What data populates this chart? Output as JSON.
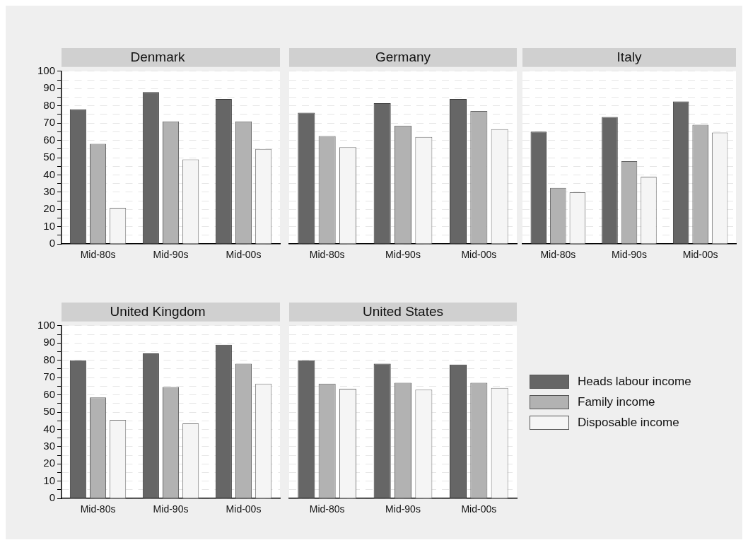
{
  "chart_data": [
    {
      "type": "bar",
      "title": "Denmark",
      "categories": [
        "Mid-80s",
        "Mid-90s",
        "Mid-00s"
      ],
      "ylim": [
        0,
        100
      ],
      "yticks": [
        0,
        {
          "value": 5,
          "label": null
        },
        10,
        {
          "value": 15,
          "label": null
        },
        20,
        {
          "value": 25,
          "label": null
        },
        30,
        {
          "value": 35,
          "label": null
        },
        40,
        {
          "value": 45,
          "label": null
        },
        50,
        {
          "value": 55,
          "label": null
        },
        60,
        {
          "value": 65,
          "label": null
        },
        70,
        {
          "value": 75,
          "label": null
        },
        80,
        {
          "value": 85,
          "label": null
        },
        90,
        {
          "value": 95,
          "label": null
        },
        100
      ],
      "grid": "y",
      "legend": false,
      "series": [
        {
          "color": "#666666",
          "values": [
            78,
            88,
            84
          ]
        },
        {
          "color": "#b2b2b2",
          "values": [
            58,
            71,
            71
          ]
        },
        {
          "color": "#f5f5f5",
          "values": [
            21,
            49,
            55
          ]
        }
      ]
    },
    {
      "type": "bar",
      "title": "Germany",
      "categories": [
        "Mid-80s",
        "Mid-90s",
        "Mid-00s"
      ],
      "ylim": [
        0,
        100
      ],
      "yticks": [
        0,
        {
          "value": 5,
          "label": null
        },
        10,
        {
          "value": 15,
          "label": null
        },
        20,
        {
          "value": 25,
          "label": null
        },
        30,
        {
          "value": 35,
          "label": null
        },
        40,
        {
          "value": 45,
          "label": null
        },
        50,
        {
          "value": 55,
          "label": null
        },
        60,
        {
          "value": 65,
          "label": null
        },
        70,
        {
          "value": 75,
          "label": null
        },
        80,
        {
          "value": 85,
          "label": null
        },
        90,
        {
          "value": 95,
          "label": null
        },
        100
      ],
      "grid": "y",
      "legend": false,
      "tick_labels": "x",
      "series": [
        {
          "color": "#666666",
          "values": [
            76,
            81.5,
            84
          ]
        },
        {
          "color": "#b2b2b2",
          "values": [
            62.5,
            68.5,
            77
          ]
        },
        {
          "color": "#f5f5f5",
          "values": [
            56,
            62,
            66.5
          ]
        }
      ]
    },
    {
      "type": "bar",
      "title": "Italy",
      "categories": [
        "Mid-80s",
        "Mid-90s",
        "Mid-00s"
      ],
      "ylim": [
        0,
        100
      ],
      "yticks": [
        0,
        {
          "value": 5,
          "label": null
        },
        10,
        {
          "value": 15,
          "label": null
        },
        20,
        {
          "value": 25,
          "label": null
        },
        30,
        {
          "value": 35,
          "label": null
        },
        40,
        {
          "value": 45,
          "label": null
        },
        50,
        {
          "value": 55,
          "label": null
        },
        60,
        {
          "value": 65,
          "label": null
        },
        70,
        {
          "value": 75,
          "label": null
        },
        80,
        {
          "value": 85,
          "label": null
        },
        90,
        {
          "value": 95,
          "label": null
        },
        100
      ],
      "grid": "y",
      "legend": false,
      "tick_labels": "x",
      "series": [
        {
          "color": "#666666",
          "values": [
            65,
            73.5,
            82.5
          ]
        },
        {
          "color": "#b2b2b2",
          "values": [
            32.5,
            48,
            69
          ]
        },
        {
          "color": "#f5f5f5",
          "values": [
            30,
            39,
            64.5
          ]
        }
      ]
    },
    {
      "type": "bar",
      "title": "United Kingdom",
      "categories": [
        "Mid-80s",
        "Mid-90s",
        "Mid-00s"
      ],
      "ylim": [
        0,
        100
      ],
      "yticks": [
        0,
        {
          "value": 5,
          "label": null
        },
        10,
        {
          "value": 15,
          "label": null
        },
        20,
        {
          "value": 25,
          "label": null
        },
        30,
        {
          "value": 35,
          "label": null
        },
        40,
        {
          "value": 45,
          "label": null
        },
        50,
        {
          "value": 55,
          "label": null
        },
        60,
        {
          "value": 65,
          "label": null
        },
        70,
        {
          "value": 75,
          "label": null
        },
        80,
        {
          "value": 85,
          "label": null
        },
        90,
        {
          "value": 95,
          "label": null
        },
        100
      ],
      "grid": "y",
      "legend": false,
      "series": [
        {
          "color": "#666666",
          "values": [
            80,
            84,
            89
          ]
        },
        {
          "color": "#b2b2b2",
          "values": [
            58.5,
            64.5,
            78
          ]
        },
        {
          "color": "#f5f5f5",
          "values": [
            45.5,
            43.5,
            66.5
          ]
        }
      ]
    },
    {
      "type": "bar",
      "title": "United States",
      "categories": [
        "Mid-80s",
        "Mid-90s",
        "Mid-00s"
      ],
      "ylim": [
        0,
        100
      ],
      "yticks": [
        0,
        {
          "value": 5,
          "label": null
        },
        10,
        {
          "value": 15,
          "label": null
        },
        20,
        {
          "value": 25,
          "label": null
        },
        30,
        {
          "value": 35,
          "label": null
        },
        40,
        {
          "value": 45,
          "label": null
        },
        50,
        {
          "value": 55,
          "label": null
        },
        60,
        {
          "value": 65,
          "label": null
        },
        70,
        {
          "value": 75,
          "label": null
        },
        80,
        {
          "value": 85,
          "label": null
        },
        90,
        {
          "value": 95,
          "label": null
        },
        100
      ],
      "grid": "y",
      "legend": "right",
      "tick_labels": "x",
      "series": [
        {
          "name": "Heads labour income",
          "color": "#666666",
          "values": [
            80,
            78,
            77.5
          ]
        },
        {
          "name": "Family income",
          "color": "#b2b2b2",
          "values": [
            66.5,
            67,
            67
          ]
        },
        {
          "name": "Disposable income",
          "color": "#f5f5f5",
          "values": [
            63.5,
            63,
            64
          ]
        }
      ]
    }
  ]
}
